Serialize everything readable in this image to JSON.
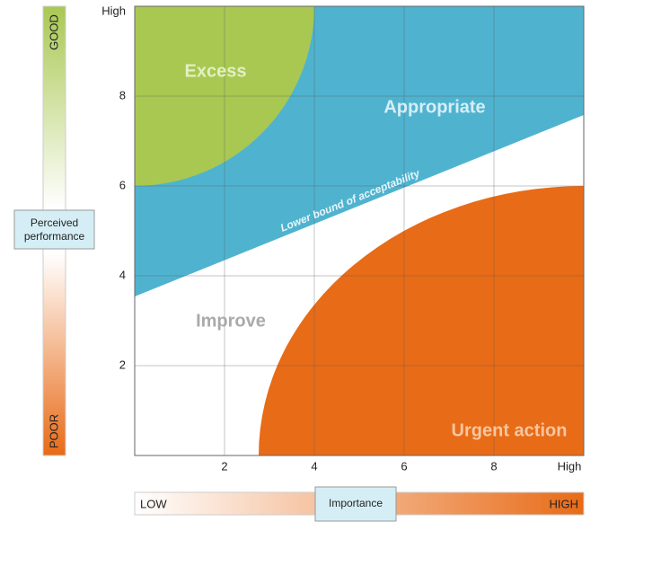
{
  "chart_data": {
    "type": "matrix",
    "xlim": [
      0,
      10
    ],
    "ylim": [
      0,
      10
    ],
    "xticks": [
      2,
      4,
      6,
      8,
      {
        "value": 10,
        "label": "High"
      }
    ],
    "yticks": [
      2,
      4,
      6,
      8,
      {
        "value": 10,
        "label": "High"
      }
    ],
    "grid": true,
    "regions": [
      "Excess",
      "Appropriate",
      "Improve",
      "Urgent action"
    ],
    "boundary_label": "Lower bound of acceptability",
    "y_scale": {
      "title": "Perceived performance",
      "top": "GOOD",
      "bottom": "POOR"
    },
    "x_scale": {
      "title": "Importance",
      "left": "LOW",
      "right": "HIGH"
    }
  }
}
